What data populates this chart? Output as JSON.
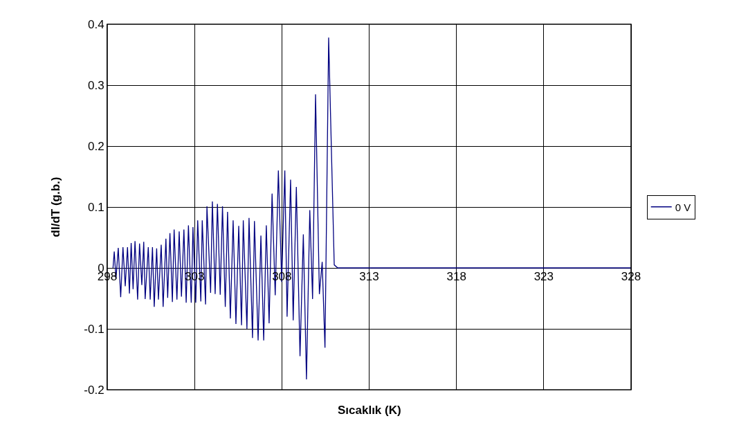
{
  "chart_data": {
    "type": "line",
    "xlabel": "Sıcaklık (K)",
    "ylabel": "dI/dT (g.b.)",
    "xlim": [
      298,
      328
    ],
    "xticks": [
      298,
      303,
      308,
      313,
      318,
      323,
      328
    ],
    "ylim": [
      -0.2,
      0.4
    ],
    "yticks": [
      -0.2,
      -0.1,
      0,
      0.1,
      0.2,
      0.3,
      0.4
    ],
    "grid": true,
    "legend": "right",
    "series": [
      {
        "name": "0 V",
        "color": "#000080",
        "x": [
          298.33,
          298.4,
          298.5,
          298.63,
          298.77,
          298.9,
          299.03,
          299.16,
          299.27,
          299.37,
          299.48,
          299.59,
          299.74,
          299.85,
          299.98,
          300.09,
          300.17,
          300.35,
          300.46,
          300.59,
          300.69,
          300.83,
          300.93,
          301.09,
          301.2,
          301.36,
          301.46,
          301.59,
          301.73,
          301.83,
          301.99,
          302.12,
          302.25,
          302.39,
          302.52,
          302.65,
          302.81,
          302.91,
          303.07,
          303.18,
          303.36,
          303.44,
          303.63,
          303.71,
          303.92,
          304.02,
          304.18,
          304.31,
          304.47,
          304.6,
          304.76,
          304.89,
          305.05,
          305.21,
          305.37,
          305.53,
          305.69,
          305.79,
          306.0,
          306.12,
          306.32,
          306.43,
          306.64,
          306.8,
          306.96,
          307.11,
          307.27,
          307.44,
          307.62,
          307.8,
          307.99,
          308.17,
          308.3,
          308.5,
          308.65,
          308.83,
          309.04,
          309.23,
          309.41,
          309.6,
          309.76,
          309.93,
          310.15,
          310.31,
          310.47,
          310.68,
          311.0,
          311.2,
          328
        ],
        "values": [
          0.0,
          0.027,
          -0.018,
          0.033,
          -0.048,
          0.034,
          -0.03,
          0.034,
          -0.042,
          0.041,
          -0.035,
          0.044,
          -0.052,
          0.04,
          -0.028,
          0.043,
          -0.051,
          0.034,
          -0.052,
          0.034,
          -0.064,
          0.032,
          -0.052,
          0.038,
          -0.064,
          0.048,
          -0.049,
          0.057,
          -0.056,
          0.063,
          -0.052,
          0.06,
          -0.047,
          0.063,
          -0.057,
          0.07,
          -0.057,
          0.067,
          -0.057,
          0.078,
          -0.055,
          0.078,
          -0.06,
          0.101,
          -0.041,
          0.109,
          -0.043,
          0.105,
          -0.044,
          0.101,
          -0.064,
          0.092,
          -0.083,
          0.078,
          -0.092,
          0.069,
          -0.094,
          0.078,
          -0.1,
          0.082,
          -0.115,
          0.077,
          -0.119,
          0.053,
          -0.119,
          0.07,
          -0.091,
          0.122,
          -0.045,
          0.16,
          -0.023,
          0.16,
          -0.08,
          0.145,
          -0.086,
          0.133,
          -0.145,
          0.055,
          -0.183,
          0.095,
          -0.051,
          0.285,
          -0.043,
          0.01,
          -0.131,
          0.378,
          0.005,
          0.0,
          0.0
        ]
      }
    ]
  }
}
